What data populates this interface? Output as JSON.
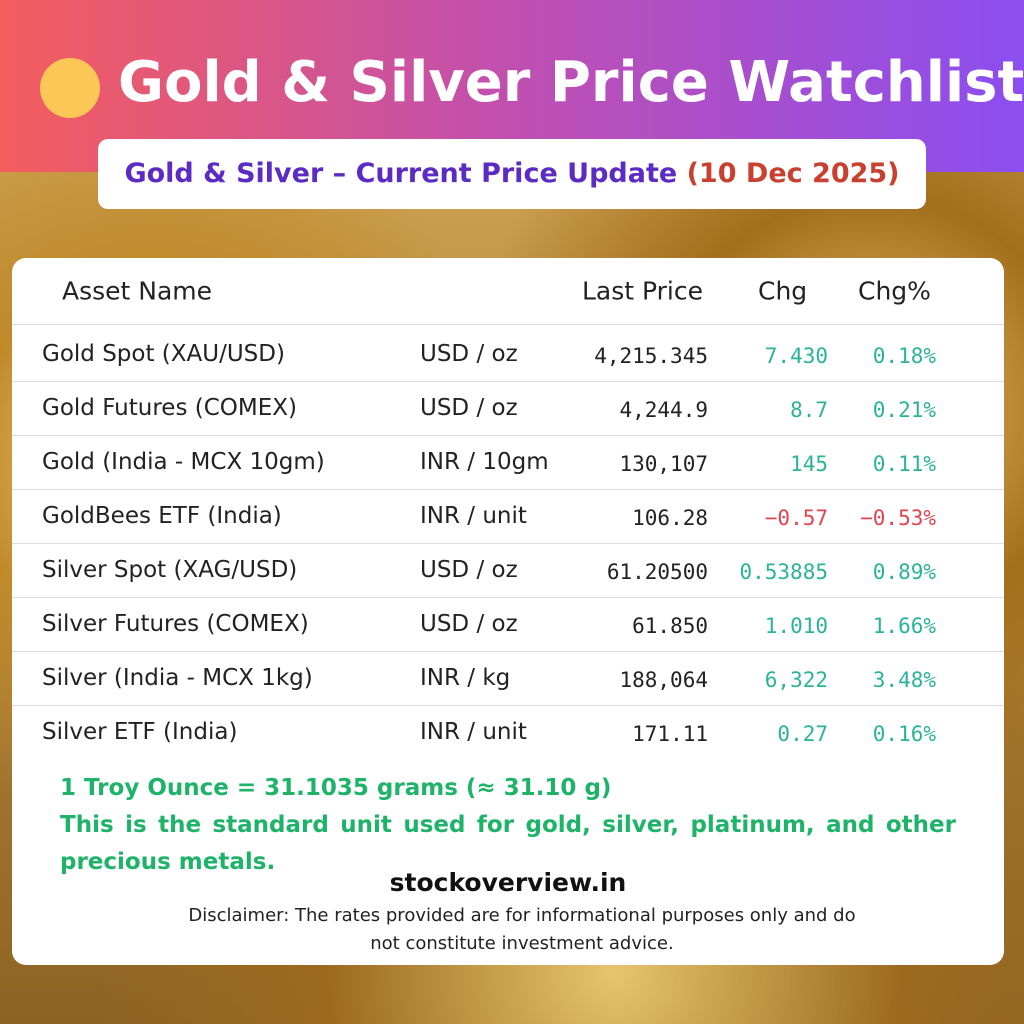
{
  "header": {
    "title": "Gold & Silver Price Watchlist",
    "subtitle": "Gold & Silver – Current Price Update",
    "date": "(10 Dec 2025)"
  },
  "table": {
    "columns": [
      "Asset Name",
      "Last Price",
      "Chg",
      "Chg%"
    ],
    "rows": [
      {
        "name": "Gold Spot (XAU/USD)",
        "unit": "USD / oz",
        "price": "4,215.345",
        "chg": "7.430",
        "chg_pct": "0.18%",
        "color": "#2bb39a"
      },
      {
        "name": "Gold Futures (COMEX)",
        "unit": "USD / oz",
        "price": "4,244.9",
        "chg": "8.7",
        "chg_pct": "0.21%",
        "color": "#2bb39a"
      },
      {
        "name": "Gold (India - MCX 10gm)",
        "unit": "INR / 10gm",
        "price": "130,107",
        "chg": "145",
        "chg_pct": "0.11%",
        "color": "#2bb39a"
      },
      {
        "name": "GoldBees ETF (India)",
        "unit": "INR / unit",
        "price": "106.28",
        "chg": "−0.57",
        "chg_pct": "−0.53%",
        "color": "#e0454f"
      },
      {
        "name": "Silver Spot (XAG/USD)",
        "unit": "USD / oz",
        "price": "61.20500",
        "chg": "0.53885",
        "chg_pct": "0.89%",
        "color": "#2bb39a"
      },
      {
        "name": "Silver Futures (COMEX)",
        "unit": "USD / oz",
        "price": "61.850",
        "chg": "1.010",
        "chg_pct": "1.66%",
        "color": "#2bb39a"
      },
      {
        "name": "Silver (India - MCX 1kg)",
        "unit": "INR / kg",
        "price": "188,064",
        "chg": "6,322",
        "chg_pct": "3.48%",
        "color": "#2bb39a"
      },
      {
        "name": "Silver ETF (India)",
        "unit": "INR / unit",
        "price": "171.11",
        "chg": "0.27",
        "chg_pct": "0.16%",
        "color": "#2bb39a"
      }
    ]
  },
  "notes": {
    "conversion": "1 Troy Ounce = 31.1035 grams (≈ 31.10 g)",
    "description": "This is the standard unit used for gold, silver, platinum, and other precious metals."
  },
  "footer": {
    "site": "stockoverview.in",
    "disclaimer": "Disclaimer: The rates provided are for informational purposes only and do not constitute investment advice."
  }
}
